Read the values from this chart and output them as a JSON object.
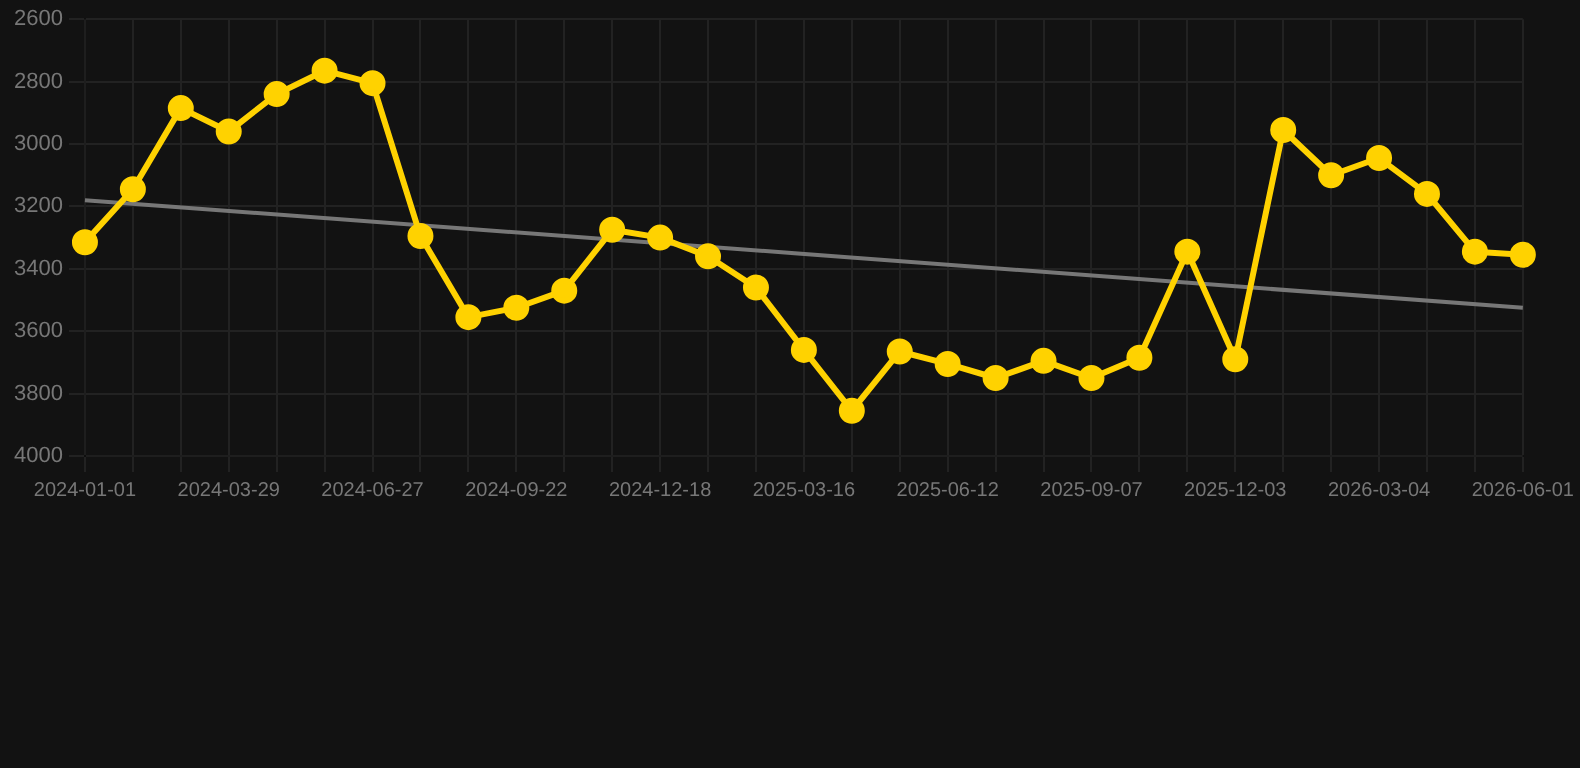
{
  "chart_data": {
    "type": "line",
    "categories": [
      "2024-01-01",
      null,
      null,
      "2024-03-29",
      null,
      null,
      "2024-06-27",
      null,
      null,
      "2024-09-22",
      null,
      null,
      "2024-12-18",
      null,
      null,
      "2025-03-16",
      null,
      null,
      "2025-06-12",
      null,
      null,
      "2025-09-07",
      null,
      null,
      "2025-12-03",
      null,
      null,
      "2026-03-04",
      null,
      null,
      "2026-06-01"
    ],
    "series": [
      {
        "type": "line",
        "color": "#ffd200",
        "marker": "circle",
        "values": [
          3315,
          3145,
          2885,
          2960,
          2840,
          2765,
          2805,
          3295,
          3555,
          3525,
          3470,
          3275,
          3300,
          3360,
          3460,
          3660,
          3855,
          3665,
          3705,
          3750,
          3695,
          3750,
          3685,
          3345,
          3690,
          2955,
          3100,
          3045,
          3160,
          3345,
          3355
        ]
      },
      {
        "type": "line",
        "color": "#777777",
        "marker": "none",
        "values": [
          3180,
          null,
          null,
          null,
          null,
          null,
          null,
          null,
          null,
          null,
          null,
          null,
          null,
          null,
          null,
          null,
          null,
          null,
          null,
          null,
          null,
          null,
          null,
          null,
          null,
          null,
          null,
          null,
          null,
          null,
          3525
        ]
      }
    ],
    "ylim": [
      4000,
      2600
    ],
    "yticks": [
      2600,
      2800,
      3000,
      3200,
      3400,
      3600,
      3800,
      4000
    ],
    "grid": true,
    "legend": false
  }
}
